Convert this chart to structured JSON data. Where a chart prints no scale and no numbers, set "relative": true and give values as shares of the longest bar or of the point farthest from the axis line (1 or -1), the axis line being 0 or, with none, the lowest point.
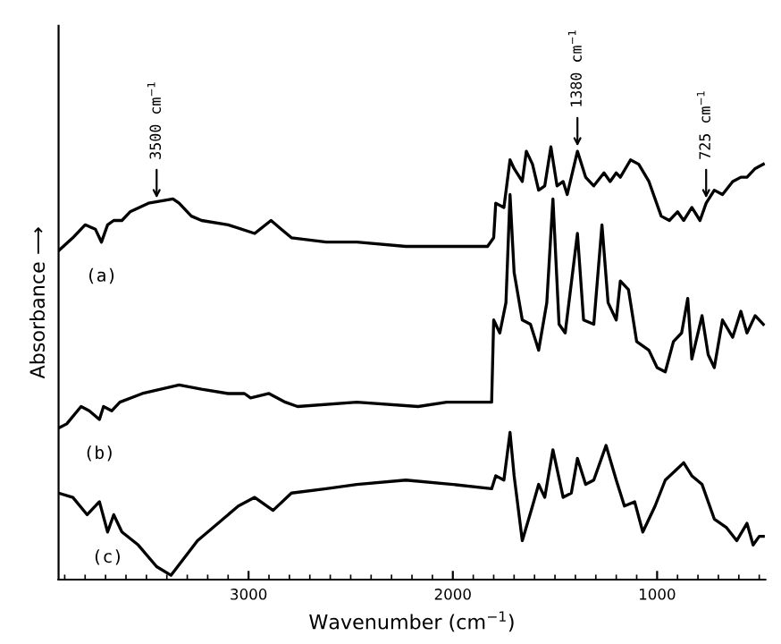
{
  "chart_data": {
    "type": "line",
    "relative": true,
    "xlabel": "Wavenumber (cm$^{−1}$)",
    "ylabel": "Absorbance ⟶",
    "xlim": [
      3930,
      470
    ],
    "xticks": [
      3000,
      2000,
      1000
    ],
    "grid": false,
    "legend": false,
    "marker": "none",
    "line_style": "solid",
    "annotations": [
      {
        "text": "3500 cm$^{−1}$",
        "x": 3450,
        "y": 0.87
      },
      {
        "text": "1380 cm$^{−1}$",
        "x": 1390,
        "y": 0.99
      },
      {
        "text": "725 cm$^{−1}$",
        "x": 760,
        "y": 0.87
      }
    ],
    "series": [
      {
        "name": "(a)",
        "color": "#000000",
        "x": [
          3930,
          3860,
          3800,
          3750,
          3720,
          3690,
          3660,
          3620,
          3580,
          3490,
          3370,
          3340,
          3280,
          3230,
          3100,
          2970,
          2890,
          2840,
          2790,
          2620,
          2470,
          2230,
          2060,
          1880,
          1830,
          1800,
          1790,
          1750,
          1720,
          1700,
          1660,
          1640,
          1610,
          1580,
          1550,
          1520,
          1490,
          1460,
          1440,
          1390,
          1350,
          1310,
          1260,
          1230,
          1200,
          1180,
          1130,
          1090,
          1040,
          980,
          940,
          900,
          870,
          830,
          790,
          760,
          720,
          680,
          630,
          590,
          560,
          520,
          480
        ],
        "values": [
          0.76,
          0.79,
          0.82,
          0.81,
          0.78,
          0.82,
          0.83,
          0.83,
          0.85,
          0.87,
          0.88,
          0.87,
          0.84,
          0.83,
          0.82,
          0.8,
          0.83,
          0.81,
          0.79,
          0.78,
          0.78,
          0.77,
          0.77,
          0.77,
          0.77,
          0.79,
          0.87,
          0.86,
          0.97,
          0.95,
          0.92,
          0.99,
          0.96,
          0.9,
          0.91,
          1.0,
          0.91,
          0.92,
          0.89,
          0.99,
          0.93,
          0.91,
          0.94,
          0.92,
          0.94,
          0.93,
          0.97,
          0.96,
          0.92,
          0.84,
          0.83,
          0.85,
          0.83,
          0.86,
          0.83,
          0.87,
          0.9,
          0.89,
          0.92,
          0.93,
          0.93,
          0.95,
          0.96
        ]
      },
      {
        "name": "(b)",
        "color": "#000000",
        "x": [
          3930,
          3890,
          3820,
          3780,
          3730,
          3710,
          3670,
          3630,
          3520,
          3340,
          3230,
          3100,
          3020,
          2990,
          2900,
          2820,
          2760,
          2470,
          2170,
          2030,
          1810,
          1800,
          1770,
          1740,
          1720,
          1700,
          1660,
          1620,
          1580,
          1540,
          1510,
          1480,
          1450,
          1390,
          1360,
          1310,
          1270,
          1240,
          1200,
          1180,
          1140,
          1100,
          1040,
          1000,
          960,
          920,
          880,
          850,
          830,
          780,
          750,
          720,
          680,
          630,
          590,
          560,
          520,
          480
        ],
        "values": [
          0.35,
          0.36,
          0.4,
          0.39,
          0.37,
          0.4,
          0.39,
          0.41,
          0.43,
          0.45,
          0.44,
          0.43,
          0.43,
          0.42,
          0.43,
          0.41,
          0.4,
          0.41,
          0.4,
          0.41,
          0.41,
          0.6,
          0.57,
          0.64,
          0.89,
          0.71,
          0.6,
          0.59,
          0.53,
          0.64,
          0.88,
          0.59,
          0.57,
          0.8,
          0.6,
          0.59,
          0.82,
          0.64,
          0.6,
          0.69,
          0.67,
          0.55,
          0.53,
          0.49,
          0.48,
          0.55,
          0.57,
          0.65,
          0.51,
          0.61,
          0.52,
          0.49,
          0.6,
          0.56,
          0.62,
          0.57,
          0.61,
          0.59
        ]
      },
      {
        "name": "(c)",
        "color": "#000000",
        "x": [
          3930,
          3860,
          3790,
          3730,
          3690,
          3660,
          3620,
          3540,
          3450,
          3380,
          3250,
          3050,
          2970,
          2880,
          2790,
          2620,
          2470,
          2230,
          2000,
          1810,
          1790,
          1750,
          1720,
          1700,
          1660,
          1610,
          1580,
          1550,
          1510,
          1460,
          1420,
          1390,
          1350,
          1310,
          1250,
          1200,
          1160,
          1110,
          1070,
          1010,
          960,
          870,
          830,
          780,
          720,
          660,
          610,
          560,
          530,
          500,
          480
        ],
        "values": [
          0.2,
          0.19,
          0.15,
          0.18,
          0.11,
          0.15,
          0.11,
          0.08,
          0.03,
          0.01,
          0.09,
          0.17,
          0.19,
          0.16,
          0.2,
          0.21,
          0.22,
          0.23,
          0.22,
          0.21,
          0.24,
          0.23,
          0.34,
          0.24,
          0.09,
          0.17,
          0.22,
          0.19,
          0.3,
          0.19,
          0.2,
          0.28,
          0.22,
          0.23,
          0.31,
          0.23,
          0.17,
          0.18,
          0.11,
          0.17,
          0.23,
          0.27,
          0.24,
          0.22,
          0.14,
          0.12,
          0.09,
          0.13,
          0.08,
          0.1,
          0.1
        ]
      }
    ]
  }
}
